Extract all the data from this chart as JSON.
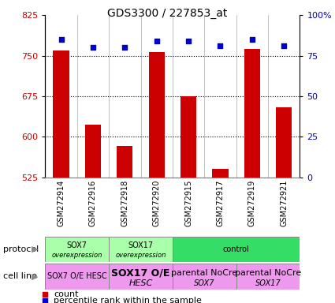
{
  "title": "GDS3300 / 227853_at",
  "samples": [
    "GSM272914",
    "GSM272916",
    "GSM272918",
    "GSM272920",
    "GSM272915",
    "GSM272917",
    "GSM272919",
    "GSM272921"
  ],
  "counts": [
    760,
    622,
    583,
    756,
    675,
    540,
    762,
    655
  ],
  "percentiles": [
    85,
    80,
    80,
    84,
    84,
    81,
    85,
    81
  ],
  "ylim_left": [
    525,
    825
  ],
  "ylim_right": [
    0,
    100
  ],
  "yticks_left": [
    525,
    600,
    675,
    750,
    825
  ],
  "yticks_right": [
    0,
    25,
    50,
    75,
    100
  ],
  "bar_color": "#cc0000",
  "dot_color": "#0000cc",
  "bg_color": "#ffffff",
  "protocol_labels": [
    {
      "text_line1": "SOX7",
      "text_line2": "overexpression",
      "cols": [
        0,
        1
      ],
      "color": "#aaffaa"
    },
    {
      "text_line1": "SOX17",
      "text_line2": "overexpression",
      "cols": [
        2,
        3
      ],
      "color": "#aaffaa"
    },
    {
      "text_line1": "control",
      "text_line2": "",
      "cols": [
        4,
        5,
        6,
        7
      ],
      "color": "#33dd66"
    }
  ],
  "cellline_labels": [
    {
      "text_line1": "SOX7 O/E HESC",
      "text_line2": "",
      "cols": [
        0,
        1
      ],
      "color": "#ee99ee",
      "fontsize_line1": 7,
      "bold_line1": false
    },
    {
      "text_line1": "SOX17 O/E",
      "text_line2": "HESC",
      "cols": [
        2,
        3
      ],
      "color": "#ee99ee",
      "fontsize_line1": 9,
      "bold_line1": true
    },
    {
      "text_line1": "parental NoCre",
      "text_line2": "SOX7",
      "cols": [
        4,
        5
      ],
      "color": "#ee99ee",
      "fontsize_line1": 8,
      "bold_line1": false
    },
    {
      "text_line1": "parental NoCre",
      "text_line2": "SOX17",
      "cols": [
        6,
        7
      ],
      "color": "#ee99ee",
      "fontsize_line1": 8,
      "bold_line1": false
    }
  ],
  "tick_label_color_left": "#cc0000",
  "tick_label_color_right": "#0000cc",
  "legend_count_color": "#cc0000",
  "legend_pct_color": "#0000cc"
}
